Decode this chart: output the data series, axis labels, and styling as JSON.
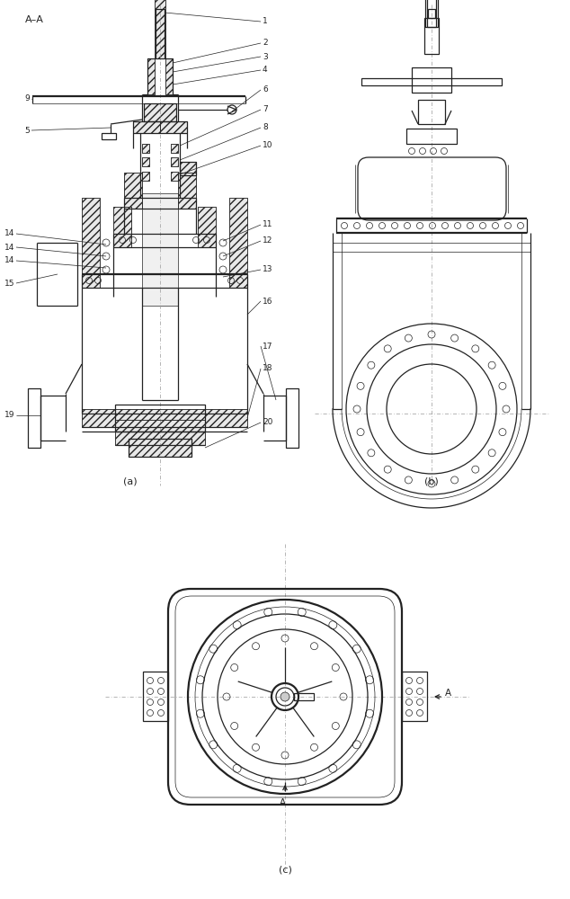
{
  "bg_color": "#ffffff",
  "line_color": "#222222",
  "fig_width": 6.34,
  "fig_height": 10.0,
  "panel_a_label": "(a)",
  "panel_b_label": "(b)",
  "panel_c_label": "(c)",
  "section_label": "A–A",
  "part_numbers": [
    "1",
    "2",
    "3",
    "4",
    "5",
    "6",
    "7",
    "8",
    "9",
    "10",
    "11",
    "12",
    "13",
    "14",
    "15",
    "16",
    "17",
    "18",
    "19",
    "20"
  ],
  "lw_thin": 0.5,
  "lw_med": 0.9,
  "lw_thick": 1.6,
  "hatch_lw": 0.4,
  "centerline_color": "#999999",
  "centerline_lw": 0.5
}
